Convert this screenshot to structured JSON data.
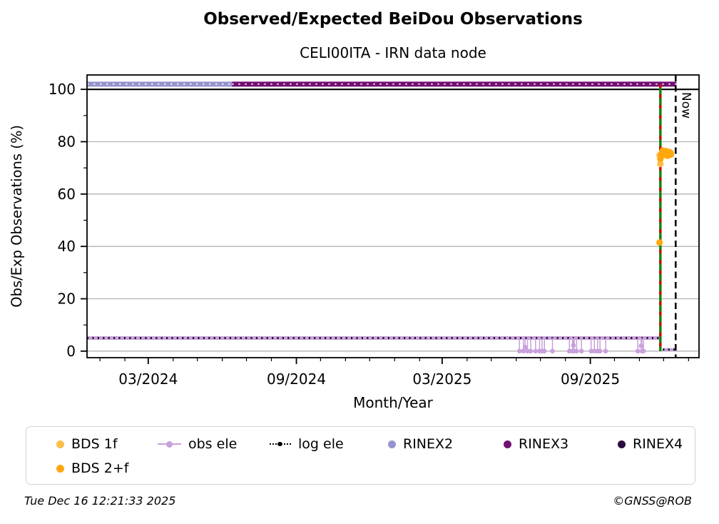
{
  "page": {
    "title": "Observed/Expected BeiDou Observations",
    "subtitle": "CELI00ITA - IRN data node",
    "footer_left": "Tue Dec 16 12:21:33 2025",
    "footer_right": "©GNSS@ROB"
  },
  "chart_data": {
    "type": "line",
    "title": "Observed/Expected BeiDou Observations",
    "subtitle": "CELI00ITA - IRN data node",
    "xlabel": "Month/Year",
    "ylabel": "Obs/Exp Observations (%)",
    "xlim": [
      "2023-12-16",
      "2026-01-14"
    ],
    "ylim": [
      -2.5,
      105.5
    ],
    "grid": "horizontal",
    "grid_color": "#b2b2b2",
    "yticks_major": [
      "0",
      "20",
      "40",
      "60",
      "80",
      "100"
    ],
    "yticks_major_values": [
      0,
      20,
      40,
      60,
      80,
      100
    ],
    "yticks_minor_values": [
      10,
      30,
      50,
      70,
      90
    ],
    "xticks_major": [
      {
        "label": "03/2024",
        "date": "2024-03-01"
      },
      {
        "label": "09/2024",
        "date": "2024-09-01"
      },
      {
        "label": "03/2025",
        "date": "2025-03-01"
      },
      {
        "label": "09/2025",
        "date": "2025-09-01"
      }
    ],
    "reference_line": {
      "value": 100,
      "color": "#000000"
    },
    "now_marker": {
      "date": "2025-12-16",
      "label": "Now",
      "color": "#000000",
      "style": "dashed"
    },
    "event_marker": {
      "date": "2025-11-27",
      "from": 102,
      "to": 0,
      "color_main": "#128012",
      "color_dash": "#d40000"
    },
    "series": [
      {
        "name": "RINEX2",
        "kind": "rinex",
        "value": 102,
        "start": "2023-12-16",
        "end": "2024-06-13",
        "color": "#9693ce",
        "lw": 7
      },
      {
        "name": "RINEX3",
        "kind": "rinex",
        "value": 102,
        "start": "2024-06-13",
        "end": "2025-12-17",
        "color": "#730f73",
        "lw": 7
      },
      {
        "name": "obs ele",
        "kind": "segment",
        "value": 5,
        "start": "2023-12-16",
        "end": "2025-11-27",
        "color": "#c9a0dc",
        "lw": 5
      },
      {
        "name": "obs ele after outage",
        "kind": "segment",
        "value": 0.6,
        "start": "2025-11-30",
        "end": "2025-12-17",
        "color": "#c9a0dc",
        "lw": 4
      },
      {
        "name": "log ele",
        "kind": "segment",
        "style": "dotted",
        "value": 5,
        "start": "2023-12-16",
        "end": "2025-11-27",
        "color": "#000000",
        "lw": 2.6
      },
      {
        "name": "log ele after outage",
        "kind": "segment",
        "style": "dotted",
        "value": 0.6,
        "start": "2025-11-30",
        "end": "2025-12-17",
        "color": "#000000",
        "lw": 2.6
      }
    ],
    "obs_ele_dips": {
      "color": "#c9a0dc",
      "points": [
        {
          "d": "2025-06-05",
          "v": 0
        },
        {
          "d": "2025-06-10",
          "v": 0
        },
        {
          "d": "2025-06-12",
          "v": 1.5
        },
        {
          "d": "2025-06-15",
          "v": 0
        },
        {
          "d": "2025-06-19",
          "v": 0
        },
        {
          "d": "2025-06-25",
          "v": 0
        },
        {
          "d": "2025-06-30",
          "v": 0
        },
        {
          "d": "2025-07-03",
          "v": 0
        },
        {
          "d": "2025-07-06",
          "v": 0
        },
        {
          "d": "2025-07-16",
          "v": 0
        },
        {
          "d": "2025-08-06",
          "v": 0
        },
        {
          "d": "2025-08-10",
          "v": 0
        },
        {
          "d": "2025-08-11",
          "v": 2.2
        },
        {
          "d": "2025-08-12",
          "v": 0
        },
        {
          "d": "2025-08-15",
          "v": 0
        },
        {
          "d": "2025-08-21",
          "v": 0
        },
        {
          "d": "2025-09-02",
          "v": 0
        },
        {
          "d": "2025-09-06",
          "v": 0
        },
        {
          "d": "2025-09-10",
          "v": 0
        },
        {
          "d": "2025-09-13",
          "v": 0
        },
        {
          "d": "2025-09-20",
          "v": 0
        },
        {
          "d": "2025-10-30",
          "v": 0
        },
        {
          "d": "2025-11-03",
          "v": 2.0
        },
        {
          "d": "2025-11-04",
          "v": 0
        },
        {
          "d": "2025-11-06",
          "v": 0
        }
      ]
    },
    "points": [
      {
        "name": "BDS 1f",
        "color": "#fcbe4a",
        "data": [
          [
            "2025-11-26",
            74.8
          ],
          [
            "2025-11-27",
            71.5
          ],
          [
            "2025-11-29",
            75.8
          ],
          [
            "2025-12-01",
            74.9
          ],
          [
            "2025-12-03",
            76.3
          ],
          [
            "2025-12-05",
            75.2
          ],
          [
            "2025-12-07",
            76.0
          ],
          [
            "2025-12-09",
            75.4
          ],
          [
            "2025-12-10",
            75.8
          ]
        ]
      },
      {
        "name": "BDS 2+f",
        "color": "#ffa80e",
        "data": [
          [
            "2025-11-26",
            41.5
          ],
          [
            "2025-11-27",
            73.4
          ],
          [
            "2025-11-28",
            75.2
          ],
          [
            "2025-11-30",
            76.6
          ],
          [
            "2025-12-02",
            75.0
          ],
          [
            "2025-12-04",
            76.4
          ],
          [
            "2025-12-06",
            74.6
          ],
          [
            "2025-12-08",
            76.1
          ],
          [
            "2025-12-10",
            75.1
          ]
        ]
      }
    ]
  },
  "legend": {
    "items": [
      {
        "label": "BDS 1f",
        "marker": "dot",
        "color": "#fcbe4a"
      },
      {
        "label": "obs ele",
        "marker": "line-dot",
        "color": "#c9a0dc"
      },
      {
        "label": "log ele",
        "marker": "dotted-line",
        "color": "#000000"
      },
      {
        "label": "RINEX2",
        "marker": "dot",
        "color": "#9693ce"
      },
      {
        "label": "RINEX3",
        "marker": "dot",
        "color": "#730f73"
      },
      {
        "label": "RINEX4",
        "marker": "dot",
        "color": "#2c0a3d"
      },
      {
        "label": "BDS 2+f",
        "marker": "dot",
        "color": "#ffa80e"
      }
    ]
  }
}
